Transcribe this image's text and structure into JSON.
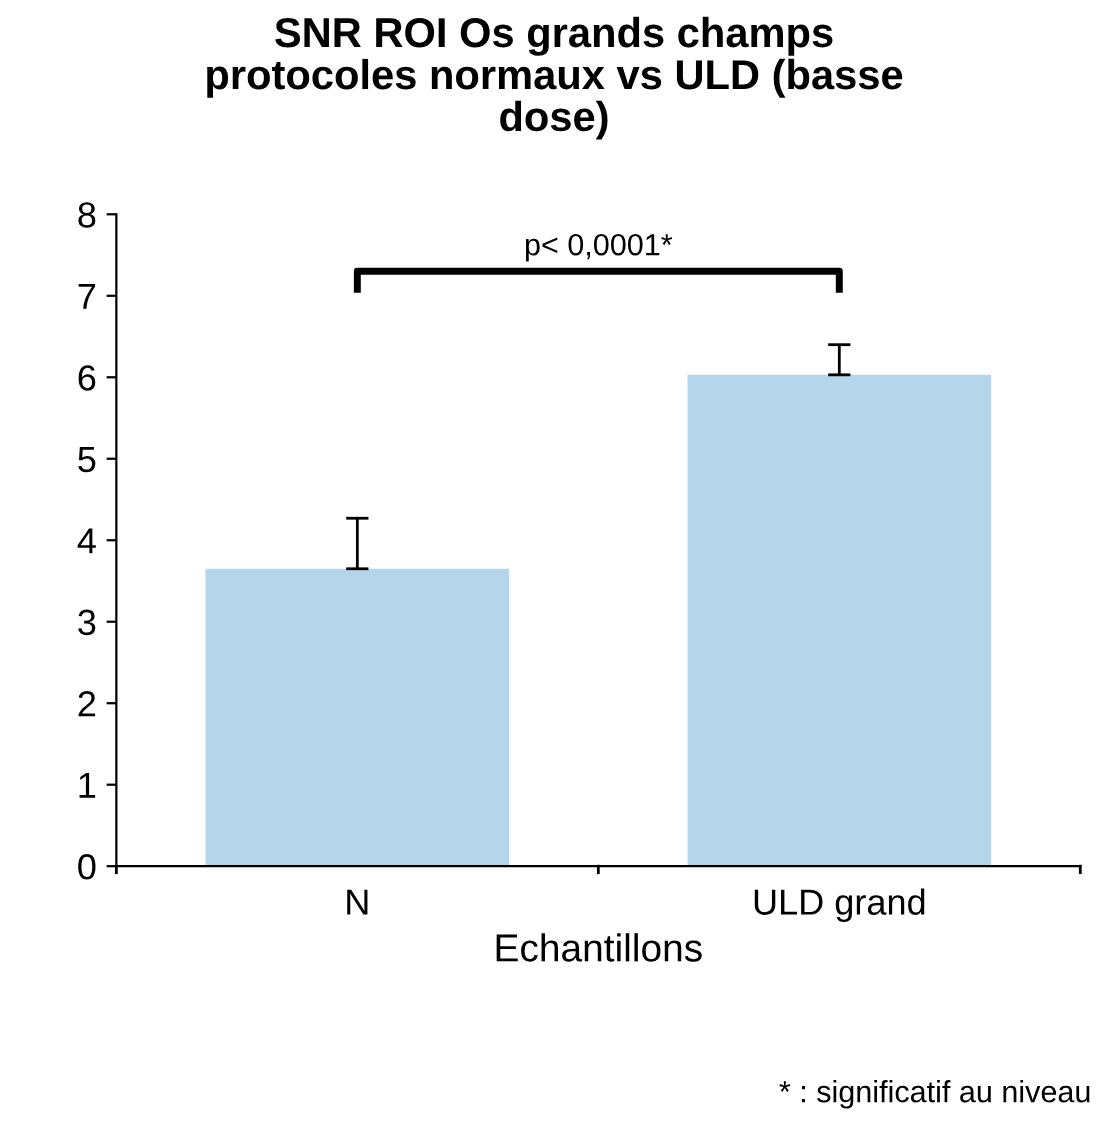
{
  "chart_data": {
    "type": "bar",
    "title": "SNR ROI Os grands champs\nprotocoles normaux vs ULD (basse\ndose)",
    "xlabel": "Echantillons",
    "categories": [
      "N",
      "ULD grand"
    ],
    "values": [
      3.65,
      6.03
    ],
    "color": "#b5d6ea",
    "errors": [
      [
        3.65,
        4.27
      ],
      [
        6.03,
        6.4
      ]
    ],
    "ylim": [
      0,
      8
    ],
    "yticks": [
      0,
      1,
      2,
      3,
      4,
      5,
      6,
      7,
      8
    ],
    "grid": false,
    "legend": false,
    "annotations": [
      "p< 0,0001*",
      "* : significatif au niveau"
    ]
  }
}
